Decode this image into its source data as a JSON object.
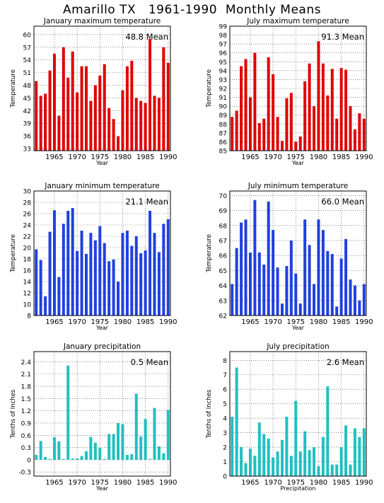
{
  "title": "Amarillo TX   1961-1990  Monthly Means",
  "chart_data": [
    {
      "type": "bar",
      "title": "January maximum temperature",
      "ylabel": "Temperature",
      "xlabel": "Year",
      "mean_label": "48.8 Mean",
      "color": "#e00000",
      "ylim": [
        32.5,
        62
      ],
      "yticks": [
        33,
        36,
        39,
        42,
        45,
        48,
        51,
        54,
        57,
        60
      ],
      "ytick_labels": [
        "33",
        "36",
        "39",
        "42",
        "45",
        "48",
        "51",
        "54",
        "57",
        "60"
      ],
      "xlim": [
        1960.5,
        1990.5
      ],
      "xticks": [
        1965,
        1970,
        1975,
        1980,
        1985,
        1990
      ],
      "xtick_labels": [
        "1965",
        "1970",
        "1975",
        "1980",
        "1985",
        "1990"
      ],
      "years": [
        1961,
        1962,
        1963,
        1964,
        1965,
        1966,
        1967,
        1968,
        1969,
        1970,
        1971,
        1972,
        1973,
        1974,
        1975,
        1976,
        1977,
        1978,
        1979,
        1980,
        1981,
        1982,
        1983,
        1984,
        1985,
        1986,
        1987,
        1988,
        1989,
        1990
      ],
      "values": [
        49.0,
        45.5,
        46.0,
        51.5,
        55.5,
        40.8,
        57.0,
        49.8,
        56.0,
        46.3,
        52.5,
        52.5,
        44.3,
        48.0,
        50.3,
        53.0,
        42.6,
        40.0,
        35.9,
        46.8,
        52.5,
        53.8,
        45.0,
        44.3,
        43.8,
        59.0,
        45.5,
        45.0,
        57.0,
        53.3
      ]
    },
    {
      "type": "bar",
      "title": "July maximum temperature",
      "ylabel": "Temperature",
      "xlabel": "Year",
      "mean_label": "91.3 Mean",
      "color": "#e00000",
      "ylim": [
        85,
        99
      ],
      "yticks": [
        85,
        86,
        87,
        88,
        89,
        90,
        91,
        92,
        93,
        94,
        95,
        96,
        97,
        98,
        99
      ],
      "ytick_labels": [
        "85",
        "86",
        "87",
        "88",
        "89",
        "90",
        "91",
        "92",
        "93",
        "94",
        "95",
        "96",
        "97",
        "98",
        "99"
      ],
      "xlim": [
        1960.5,
        1990.5
      ],
      "xticks": [
        1965,
        1970,
        1975,
        1980,
        1985,
        1990
      ],
      "xtick_labels": [
        "1965",
        "1970",
        "1975",
        "1980",
        "1985",
        "1990"
      ],
      "years": [
        1961,
        1962,
        1963,
        1964,
        1965,
        1966,
        1967,
        1968,
        1969,
        1970,
        1971,
        1972,
        1973,
        1974,
        1975,
        1976,
        1977,
        1978,
        1979,
        1980,
        1981,
        1982,
        1983,
        1984,
        1985,
        1986,
        1987,
        1988,
        1989,
        1990
      ],
      "values": [
        88.8,
        89.5,
        94.5,
        95.3,
        91.0,
        96.0,
        88.1,
        88.6,
        95.5,
        93.6,
        88.8,
        86.1,
        90.9,
        91.5,
        86.0,
        86.6,
        92.8,
        94.8,
        90.0,
        97.3,
        94.8,
        91.2,
        94.2,
        88.6,
        94.3,
        94.1,
        90.0,
        87.4,
        89.2,
        88.6
      ]
    },
    {
      "type": "bar",
      "title": "January minimum temperature",
      "ylabel": "Temperature",
      "xlabel": "Year",
      "mean_label": "21.1 Mean",
      "color": "#2040e0",
      "ylim": [
        8,
        30
      ],
      "yticks": [
        8,
        10,
        12,
        14,
        16,
        18,
        20,
        22,
        24,
        26,
        28,
        30
      ],
      "ytick_labels": [
        "8",
        "10",
        "12",
        "14",
        "16",
        "18",
        "20",
        "22",
        "24",
        "26",
        "28",
        "30"
      ],
      "xlim": [
        1960.5,
        1990.5
      ],
      "xticks": [
        1965,
        1970,
        1975,
        1980,
        1985,
        1990
      ],
      "xtick_labels": [
        "1965",
        "1970",
        "1975",
        "1980",
        "1985",
        "1990"
      ],
      "years": [
        1961,
        1962,
        1963,
        1964,
        1965,
        1966,
        1967,
        1968,
        1969,
        1970,
        1971,
        1972,
        1973,
        1974,
        1975,
        1976,
        1977,
        1978,
        1979,
        1980,
        1981,
        1982,
        1983,
        1984,
        1985,
        1986,
        1987,
        1988,
        1989,
        1990
      ],
      "values": [
        19.7,
        17.8,
        11.4,
        22.8,
        26.6,
        14.8,
        24.2,
        26.5,
        27.0,
        19.4,
        23.0,
        18.9,
        22.6,
        21.3,
        23.8,
        20.8,
        17.6,
        17.9,
        14.0,
        22.6,
        23.0,
        20.3,
        22.0,
        19.0,
        19.5,
        26.5,
        22.6,
        19.2,
        24.2,
        25.0
      ]
    },
    {
      "type": "bar",
      "title": "July minimum temperature",
      "ylabel": "Temperature",
      "xlabel": "Year",
      "mean_label": "66.0 Mean",
      "color": "#2040e0",
      "ylim": [
        62,
        70.3
      ],
      "yticks": [
        62,
        63,
        64,
        65,
        66,
        67,
        68,
        69,
        70
      ],
      "ytick_labels": [
        "62",
        "63",
        "64",
        "65",
        "66",
        "67",
        "68",
        "69",
        "70"
      ],
      "xlim": [
        1960.5,
        1990.5
      ],
      "xticks": [
        1965,
        1970,
        1975,
        1980,
        1985,
        1990
      ],
      "xtick_labels": [
        "1965",
        "1970",
        "1975",
        "1980",
        "1985",
        "1990"
      ],
      "years": [
        1961,
        1962,
        1963,
        1964,
        1965,
        1966,
        1967,
        1968,
        1969,
        1970,
        1971,
        1972,
        1973,
        1974,
        1975,
        1976,
        1977,
        1978,
        1979,
        1980,
        1981,
        1982,
        1983,
        1984,
        1985,
        1986,
        1987,
        1988,
        1989,
        1990
      ],
      "values": [
        64.1,
        66.5,
        68.2,
        68.4,
        66.2,
        69.7,
        66.2,
        65.4,
        69.6,
        67.7,
        65.2,
        62.8,
        65.3,
        67.0,
        64.8,
        62.8,
        68.4,
        66.7,
        64.1,
        68.4,
        67.7,
        66.3,
        66.1,
        62.6,
        65.8,
        67.1,
        64.4,
        64.0,
        63.0,
        64.1
      ]
    },
    {
      "type": "bar",
      "title": "January precipitation",
      "ylabel": "Tenths of Inches",
      "xlabel": "Year",
      "mean_label": "0.5 Mean",
      "color": "#20c0c0",
      "ylim": [
        -0.4,
        2.65
      ],
      "yticks": [
        -0.3,
        0,
        0.3,
        0.6,
        0.9,
        1.2,
        1.5,
        1.8,
        2.1,
        2.4
      ],
      "ytick_labels": [
        "-0.3",
        "0",
        "0.3",
        "0.6",
        "0.9",
        "1.2",
        "1.5",
        "1.8",
        "2.1",
        "2.4"
      ],
      "xlim": [
        1960.5,
        1990.5
      ],
      "xticks": [
        1965,
        1970,
        1975,
        1980,
        1985,
        1990
      ],
      "xtick_labels": [
        "1965",
        "1970",
        "1975",
        "1980",
        "1985",
        "1990"
      ],
      "years": [
        1961,
        1962,
        1963,
        1964,
        1965,
        1966,
        1967,
        1968,
        1969,
        1970,
        1971,
        1972,
        1973,
        1974,
        1975,
        1976,
        1977,
        1978,
        1979,
        1980,
        1981,
        1982,
        1983,
        1984,
        1985,
        1986,
        1987,
        1988,
        1989,
        1990
      ],
      "values": [
        0.12,
        0.46,
        0.07,
        0.02,
        0.55,
        0.45,
        0.02,
        2.31,
        0.03,
        0.03,
        0.09,
        0.21,
        0.56,
        0.42,
        0.29,
        0.02,
        0.63,
        0.63,
        0.9,
        0.87,
        0.12,
        0.14,
        1.62,
        0.57,
        1.0,
        0.02,
        1.27,
        0.33,
        0.16,
        1.22
      ]
    },
    {
      "type": "bar",
      "title": "July precipitation",
      "ylabel": "Tenths of Inches",
      "xlabel": "Precipitation",
      "mean_label": "2.6 Mean",
      "color": "#20c0c0",
      "ylim": [
        0,
        8.6
      ],
      "yticks": [
        0,
        1,
        2,
        3,
        4,
        5,
        6,
        7,
        8
      ],
      "ytick_labels": [
        "0",
        "1",
        "2",
        "3",
        "4",
        "5",
        "6",
        "7",
        "8"
      ],
      "xlim": [
        1960.5,
        1990.5
      ],
      "xticks": [
        1965,
        1970,
        1975,
        1980,
        1985,
        1990
      ],
      "xtick_labels": [
        "1965",
        "1970",
        "1975",
        "1980",
        "1985",
        "1990"
      ],
      "years": [
        1961,
        1962,
        1963,
        1964,
        1965,
        1966,
        1967,
        1968,
        1969,
        1970,
        1971,
        1972,
        1973,
        1974,
        1975,
        1976,
        1977,
        1978,
        1979,
        1980,
        1981,
        1982,
        1983,
        1984,
        1985,
        1986,
        1987,
        1988,
        1989,
        1990
      ],
      "values": [
        4.1,
        7.5,
        2.0,
        0.9,
        1.9,
        1.4,
        3.7,
        2.9,
        2.6,
        1.3,
        1.7,
        2.5,
        4.1,
        1.4,
        5.2,
        1.7,
        3.1,
        1.8,
        2.0,
        0.7,
        2.7,
        6.2,
        0.8,
        0.8,
        2.0,
        3.5,
        0.8,
        3.3,
        2.7,
        3.3
      ]
    }
  ]
}
